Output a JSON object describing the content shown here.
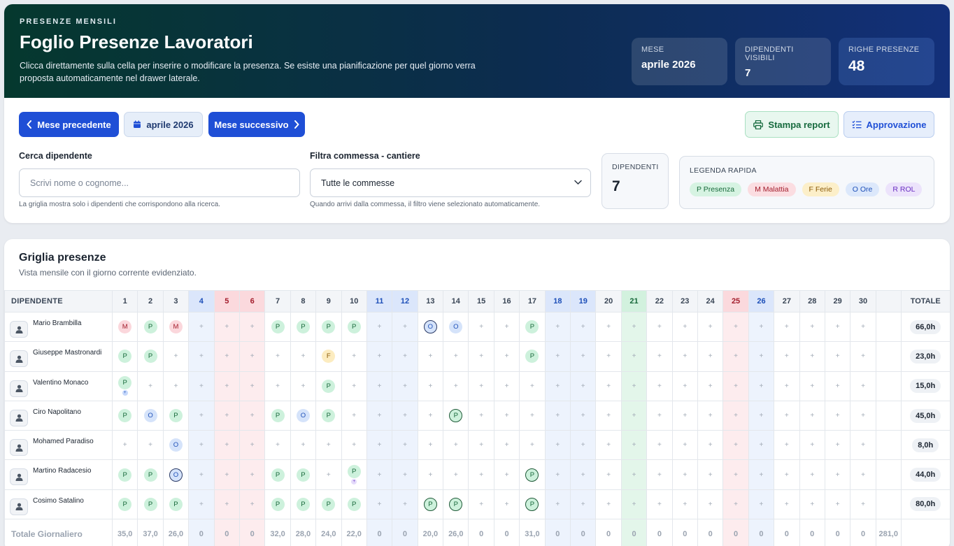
{
  "hero": {
    "eyebrow": "PRESENZE MENSILI",
    "title": "Foglio Presenze Lavoratori",
    "description": "Clicca direttamente sulla cella per inserire o modificare la presenza. Se esiste una pianificazione per quel giorno verra proposta automaticamente nel drawer laterale.",
    "stats": [
      {
        "label": "MESE",
        "value": "aprile 2026"
      },
      {
        "label": "DIPENDENTI VISIBILI",
        "value": "7"
      },
      {
        "label": "RIGHE PRESENZE",
        "value": "48"
      }
    ]
  },
  "toolbar": {
    "prev_label": "Mese precedente",
    "current_label": "aprile 2026",
    "next_label": "Mese successivo",
    "print_label": "Stampa report",
    "approve_label": "Approvazione"
  },
  "filters": {
    "search_label": "Cerca dipendente",
    "search_placeholder": "Scrivi nome o cognome...",
    "search_hint": "La griglia mostra solo i dipendenti che corrispondono alla ricerca.",
    "job_label": "Filtra commessa - cantiere",
    "job_value": "Tutte le commesse",
    "job_hint": "Quando arrivi dalla commessa, il filtro viene selezionato automaticamente."
  },
  "summary": {
    "label": "DIPENDENTI",
    "value": "7"
  },
  "legend": {
    "title": "LEGENDA RAPIDA",
    "items": [
      {
        "code": "p",
        "label": "P Presenza"
      },
      {
        "code": "m",
        "label": "M Malattia"
      },
      {
        "code": "f",
        "label": "F Ferie"
      },
      {
        "code": "o",
        "label": "O Ore"
      },
      {
        "code": "r",
        "label": "R ROL"
      }
    ]
  },
  "grid": {
    "title": "Griglia presenze",
    "subtitle": "Vista mensile con il giorno corrente evidenziato.",
    "employee_header": "DIPENDENTE",
    "total_header": "TOTALE",
    "days": [
      "1",
      "2",
      "3",
      "4",
      "5",
      "6",
      "7",
      "8",
      "9",
      "10",
      "11",
      "12",
      "13",
      "14",
      "15",
      "16",
      "17",
      "18",
      "19",
      "20",
      "21",
      "22",
      "23",
      "24",
      "25",
      "26",
      "27",
      "28",
      "29",
      "30"
    ],
    "saturdays": [
      4,
      11,
      18,
      26
    ],
    "sundays": [
      5,
      6,
      25
    ],
    "bluedays": [
      12,
      19
    ],
    "today": 21,
    "empty_symbol": "+",
    "rows": [
      {
        "name": "Mario Brambilla",
        "total": "66,0h",
        "cells": {
          "1": "M",
          "2": "P",
          "3": "M",
          "7": "P",
          "8": "P",
          "9": "P",
          "10": "P",
          "13": "O*",
          "14": "O",
          "17": "P"
        }
      },
      {
        "name": "Giuseppe Mastronardi",
        "total": "23,0h",
        "cells": {
          "1": "P",
          "2": "P",
          "9": "F",
          "17": "P"
        }
      },
      {
        "name": "Valentino Monaco",
        "total": "15,0h",
        "cells": {
          "1": "P+b",
          "9": "P"
        }
      },
      {
        "name": "Ciro Napolitano",
        "total": "45,0h",
        "cells": {
          "1": "P",
          "2": "O",
          "3": "P",
          "7": "P",
          "8": "O",
          "9": "P",
          "14": "P*"
        }
      },
      {
        "name": "Mohamed Paradiso",
        "total": "8,0h",
        "cells": {
          "3": "O"
        }
      },
      {
        "name": "Martino Radacesio",
        "total": "44,0h",
        "cells": {
          "1": "P",
          "2": "P",
          "3": "O*",
          "7": "P",
          "8": "P",
          "10": "P+p",
          "17": "P*"
        }
      },
      {
        "name": "Cosimo Satalino",
        "total": "80,0h",
        "cells": {
          "1": "P",
          "2": "P",
          "3": "P",
          "7": "P",
          "8": "P",
          "9": "P",
          "10": "P",
          "13": "P*",
          "14": "P*",
          "17": "P*"
        }
      }
    ],
    "totals_label": "Totale Giornaliero",
    "daily_totals": [
      "35,0",
      "37,0",
      "26,0",
      "0",
      "0",
      "0",
      "32,0",
      "28,0",
      "24,0",
      "22,0",
      "0",
      "0",
      "20,0",
      "26,0",
      "0",
      "0",
      "31,0",
      "0",
      "0",
      "0",
      "0",
      "0",
      "0",
      "0",
      "0",
      "0",
      "0",
      "0",
      "0",
      "0"
    ],
    "grand_total": "281,0"
  }
}
